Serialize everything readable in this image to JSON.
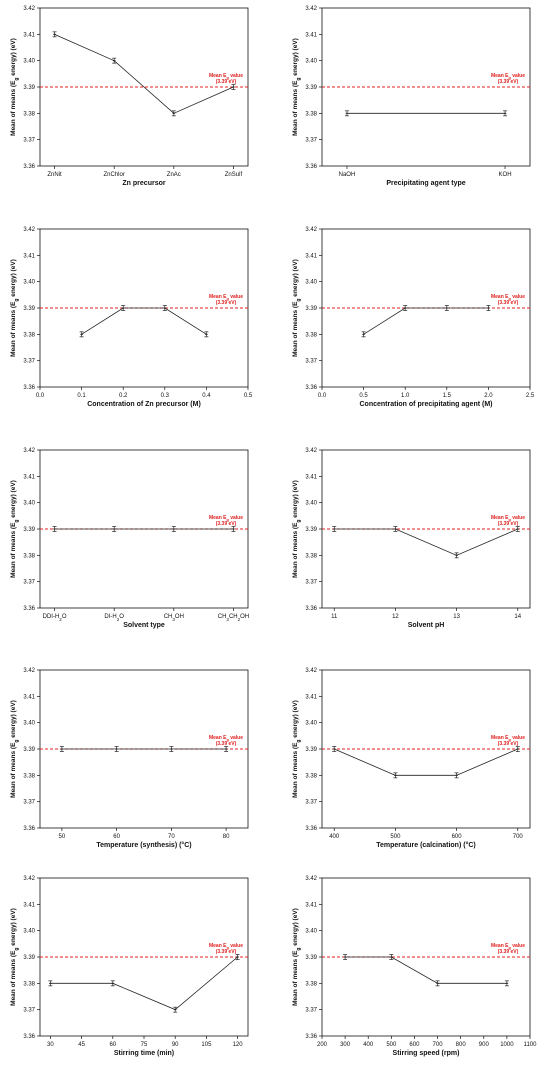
{
  "colors": {
    "mean_line": "#e02020",
    "data_line": "#222222",
    "axis": "#111111"
  },
  "mean_annotation": {
    "line1": "Mean E",
    "sub": "g",
    "line1_end": " value",
    "line2": "(3.39 eV)"
  },
  "ylabel_parts": {
    "pre": "Mean of means (E",
    "sub": "g",
    "post": " energy) (eV)"
  },
  "chart_data": [
    {
      "type": "line",
      "xlabel": "Zn precursor",
      "x_type": "category",
      "categories": [
        "ZnNit",
        "ZnChlor",
        "ZnAc",
        "ZnSulf"
      ],
      "x": [
        1,
        2,
        3,
        4
      ],
      "y": [
        3.41,
        3.4,
        3.38,
        3.39
      ],
      "ylim": [
        3.36,
        3.42
      ],
      "yticks": [
        3.36,
        3.37,
        3.38,
        3.39,
        3.4,
        3.41,
        3.42
      ],
      "mean_value": 3.39
    },
    {
      "type": "line",
      "xlabel": "Precipitating agent type",
      "x_type": "category",
      "categories": [
        "NaOH",
        "KOH"
      ],
      "x": [
        1,
        2
      ],
      "y": [
        3.38,
        3.38
      ],
      "ylim": [
        3.36,
        3.42
      ],
      "yticks": [
        3.36,
        3.37,
        3.38,
        3.39,
        3.4,
        3.41,
        3.42
      ],
      "mean_value": 3.39
    },
    {
      "type": "line",
      "xlabel": "Concentration of Zn precursor (M)",
      "x_type": "numeric",
      "xlim": [
        0.0,
        0.5
      ],
      "xticks": [
        0.0,
        0.1,
        0.2,
        0.3,
        0.4,
        0.5
      ],
      "xtick_labels": [
        "0.0",
        "0.1",
        "0.2",
        "0.3",
        "0.4",
        "0.5"
      ],
      "x": [
        0.1,
        0.2,
        0.3,
        0.4
      ],
      "y": [
        3.38,
        3.39,
        3.39,
        3.38
      ],
      "ylim": [
        3.36,
        3.42
      ],
      "yticks": [
        3.36,
        3.37,
        3.38,
        3.39,
        3.4,
        3.41,
        3.42
      ],
      "mean_value": 3.39
    },
    {
      "type": "line",
      "xlabel": "Concentration of precipitating agent (M)",
      "x_type": "numeric",
      "xlim": [
        0.0,
        2.5
      ],
      "xticks": [
        0.0,
        0.5,
        1.0,
        1.5,
        2.0,
        2.5
      ],
      "xtick_labels": [
        "0.0",
        "0.5",
        "1.0",
        "1.5",
        "2.0",
        "2.5"
      ],
      "x": [
        0.5,
        1.0,
        1.5,
        2.0
      ],
      "y": [
        3.38,
        3.39,
        3.39,
        3.39
      ],
      "ylim": [
        3.36,
        3.42
      ],
      "yticks": [
        3.36,
        3.37,
        3.38,
        3.39,
        3.4,
        3.41,
        3.42
      ],
      "mean_value": 3.39
    },
    {
      "type": "line",
      "xlabel": "Solvent type",
      "x_type": "category",
      "categories": [
        "DDI-H2O",
        "DI-H2O",
        "CH3OH",
        "CH3CH2OH"
      ],
      "category_parts": [
        [
          {
            "t": "DDI-H"
          },
          {
            "t": "2",
            "sub": true
          },
          {
            "t": "O"
          }
        ],
        [
          {
            "t": "DI-H"
          },
          {
            "t": "2",
            "sub": true
          },
          {
            "t": "O"
          }
        ],
        [
          {
            "t": "CH"
          },
          {
            "t": "3",
            "sub": true
          },
          {
            "t": "OH"
          }
        ],
        [
          {
            "t": "CH"
          },
          {
            "t": "3",
            "sub": true
          },
          {
            "t": "CH"
          },
          {
            "t": "2",
            "sub": true
          },
          {
            "t": "OH"
          }
        ]
      ],
      "x": [
        1,
        2,
        3,
        4
      ],
      "y": [
        3.39,
        3.39,
        3.39,
        3.39
      ],
      "ylim": [
        3.36,
        3.42
      ],
      "yticks": [
        3.36,
        3.37,
        3.38,
        3.39,
        3.4,
        3.41,
        3.42
      ],
      "mean_value": 3.39
    },
    {
      "type": "line",
      "xlabel": "Solvent pH",
      "x_type": "numeric",
      "xlim": [
        10.8,
        14.2
      ],
      "xticks": [
        11,
        12,
        13,
        14
      ],
      "xtick_labels": [
        "11",
        "12",
        "13",
        "14"
      ],
      "x": [
        11,
        12,
        13,
        14
      ],
      "y": [
        3.39,
        3.39,
        3.38,
        3.39
      ],
      "ylim": [
        3.36,
        3.42
      ],
      "yticks": [
        3.36,
        3.37,
        3.38,
        3.39,
        3.4,
        3.41,
        3.42
      ],
      "mean_value": 3.39
    },
    {
      "type": "line",
      "xlabel": "Temperature (synthesis) (°C)",
      "x_type": "numeric",
      "xlim": [
        46,
        84
      ],
      "xticks": [
        50,
        60,
        70,
        80
      ],
      "xtick_labels": [
        "50",
        "60",
        "70",
        "80"
      ],
      "x": [
        50,
        60,
        70,
        80
      ],
      "y": [
        3.39,
        3.39,
        3.39,
        3.39
      ],
      "ylim": [
        3.36,
        3.42
      ],
      "yticks": [
        3.36,
        3.37,
        3.38,
        3.39,
        3.4,
        3.41,
        3.42
      ],
      "mean_value": 3.39
    },
    {
      "type": "line",
      "xlabel": "Temperature (calcination) (°C)",
      "x_type": "numeric",
      "xlim": [
        380,
        720
      ],
      "xticks": [
        400,
        500,
        600,
        700
      ],
      "xtick_labels": [
        "400",
        "500",
        "600",
        "700"
      ],
      "x": [
        400,
        500,
        600,
        700
      ],
      "y": [
        3.39,
        3.38,
        3.38,
        3.39
      ],
      "ylim": [
        3.36,
        3.42
      ],
      "yticks": [
        3.36,
        3.37,
        3.38,
        3.39,
        3.4,
        3.41,
        3.42
      ],
      "mean_value": 3.39
    },
    {
      "type": "line",
      "xlabel": "Stirring time (min)",
      "x_type": "numeric",
      "xlim": [
        25,
        125
      ],
      "xticks": [
        30,
        45,
        60,
        75,
        90,
        105,
        120
      ],
      "xtick_labels": [
        "30",
        "45",
        "60",
        "75",
        "90",
        "105",
        "120"
      ],
      "x": [
        30,
        60,
        90,
        120
      ],
      "y": [
        3.38,
        3.38,
        3.37,
        3.39
      ],
      "ylim": [
        3.36,
        3.42
      ],
      "yticks": [
        3.36,
        3.37,
        3.38,
        3.39,
        3.4,
        3.41,
        3.42
      ],
      "mean_value": 3.39
    },
    {
      "type": "line",
      "xlabel": "Stirring speed (rpm)",
      "x_type": "numeric",
      "xlim": [
        200,
        1100
      ],
      "xticks": [
        200,
        300,
        400,
        500,
        600,
        700,
        800,
        900,
        1000,
        1100
      ],
      "xtick_labels": [
        "200",
        "300",
        "400",
        "500",
        "600",
        "700",
        "800",
        "900",
        "1000",
        "1100"
      ],
      "x": [
        300,
        500,
        700,
        1000
      ],
      "y": [
        3.39,
        3.39,
        3.38,
        3.38
      ],
      "ylim": [
        3.36,
        3.42
      ],
      "yticks": [
        3.36,
        3.37,
        3.38,
        3.39,
        3.4,
        3.41,
        3.42
      ],
      "mean_value": 3.39
    }
  ]
}
